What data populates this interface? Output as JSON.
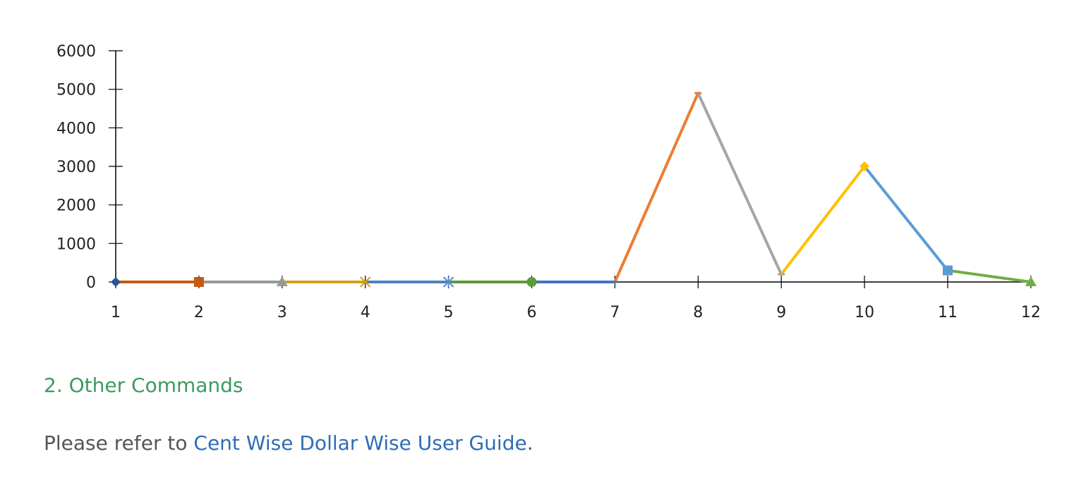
{
  "chart_data": {
    "type": "line",
    "title": "",
    "xlabel": "",
    "ylabel": "",
    "x": [
      "1",
      "2",
      "3",
      "4",
      "5",
      "6",
      "7",
      "8",
      "9",
      "10",
      "11",
      "12"
    ],
    "values": [
      0,
      0,
      0,
      0,
      0,
      0,
      0,
      4900,
      200,
      3000,
      300,
      0
    ],
    "ylim": [
      0,
      6000
    ],
    "yticks": [
      "0",
      "1000",
      "2000",
      "3000",
      "4000",
      "5000",
      "6000"
    ],
    "grid": false,
    "legend": "none",
    "segment_colors": [
      "#c55a11",
      "#999999",
      "#d4a017",
      "#4f81bd",
      "#5b9b3b",
      "#4472c4",
      "#ed7d31",
      "#a5a5a5",
      "#ffc000",
      "#5b9bd5",
      "#70ad47"
    ],
    "markers": [
      {
        "shape": "diamond",
        "color": "#2e5597"
      },
      {
        "shape": "square",
        "color": "#c55a11"
      },
      {
        "shape": "triangle",
        "color": "#999999"
      },
      {
        "shape": "x",
        "color": "#d4a017"
      },
      {
        "shape": "star",
        "color": "#5b8bd0"
      },
      {
        "shape": "circle",
        "color": "#5b9b3b"
      },
      {
        "shape": "dash",
        "color": "#4472c4"
      },
      {
        "shape": "dash",
        "color": "#ed7d31"
      },
      {
        "shape": "dash",
        "color": "#a5a5a5"
      },
      {
        "shape": "diamond",
        "color": "#ffc000"
      },
      {
        "shape": "square",
        "color": "#5b9bd5"
      },
      {
        "shape": "triangle",
        "color": "#70ad47"
      }
    ]
  },
  "section": {
    "heading": "2. Other Commands",
    "text_before": "Please refer to ",
    "link_text": "Cent Wise Dollar Wise User Guide",
    "text_after": "."
  }
}
